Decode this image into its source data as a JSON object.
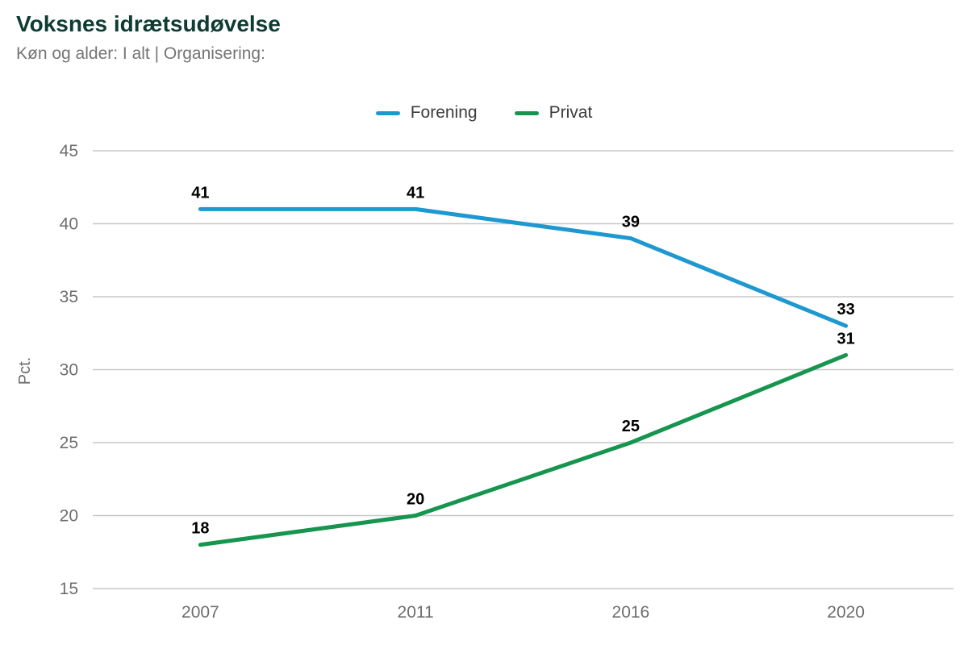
{
  "header": {
    "title": "Voksnes idrætsudøvelse",
    "subtitle": "Køn og alder: I alt | Organisering:"
  },
  "chart_data": {
    "type": "line",
    "categories": [
      "2007",
      "2011",
      "2016",
      "2020"
    ],
    "series": [
      {
        "name": "Forening",
        "color": "#1e98d1",
        "values": [
          41,
          41,
          39,
          33
        ]
      },
      {
        "name": "Privat",
        "color": "#16954f",
        "values": [
          18,
          20,
          25,
          31
        ]
      }
    ],
    "title": "Voksnes idrætsudøvelse",
    "xlabel": "",
    "ylabel": "Pct.",
    "ylim": [
      15,
      45
    ],
    "ytick_step": 5,
    "yticks": [
      15,
      20,
      25,
      30,
      35,
      40,
      45
    ],
    "grid": true,
    "legend_position": "top-center",
    "data_labels": true
  },
  "colors": {
    "background": "#ffffff",
    "title": "#0f3b33",
    "subtitle": "#757575",
    "legend_text": "#3d3d3d",
    "axis_text": "#6e6e6e",
    "gridline": "#c7c7c7",
    "data_label": "#000000"
  }
}
